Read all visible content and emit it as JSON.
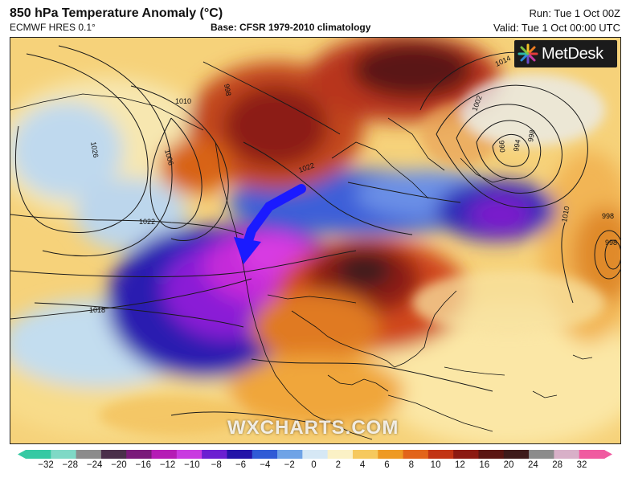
{
  "header": {
    "title": "850 hPa Temperature Anomaly (°C)",
    "model": "ECMWF HRES 0.1°",
    "base": "Base: CFSR 1979-2010 climatology",
    "run": "Run: Tue 1 Oct 00Z",
    "valid": "Valid: Tue 1 Oct 00:00 UTC"
  },
  "brand": {
    "logo": "MetDesk",
    "watermark": "WXCHARTS.COM"
  },
  "map": {
    "isobar_labels": [
      "1026",
      "1010",
      "1006",
      "1018",
      "1022",
      "1022",
      "1014",
      "1002",
      "998",
      "994",
      "990",
      "998",
      "1010",
      "998",
      "998"
    ],
    "arrow_color": "#1a1aff"
  },
  "colorbar": {
    "ticks": [
      "−32",
      "−28",
      "−24",
      "−20",
      "−16",
      "−12",
      "−10",
      "−8",
      "−6",
      "−4",
      "−2",
      "0",
      "2",
      "4",
      "6",
      "8",
      "10",
      "12",
      "16",
      "20",
      "24",
      "28",
      "32"
    ],
    "colors": [
      "#36c9a3",
      "#7fd9c6",
      "#8c8c8c",
      "#4a2f4a",
      "#7a1a7a",
      "#b51cb5",
      "#c93ae0",
      "#6b1fd1",
      "#2414a8",
      "#2f5bd6",
      "#6fa3e6",
      "#d6e8f5",
      "#fbf1c6",
      "#f6c95e",
      "#ee9a24",
      "#e2641a",
      "#c23414",
      "#8c1a12",
      "#5a1512",
      "#3d1a1a",
      "#8c8c8c",
      "#d8b0c8",
      "#f05aa0"
    ]
  }
}
